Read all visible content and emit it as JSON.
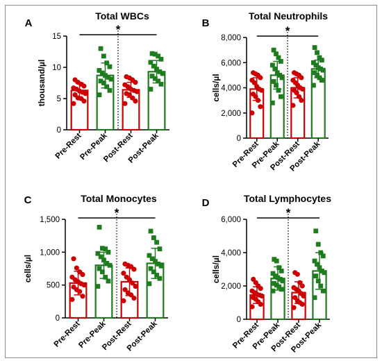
{
  "colors": {
    "rest": "#cc0000",
    "peak": "#1e7b1e",
    "axis": "#000000"
  },
  "chart_data": [
    {
      "type": "bar",
      "panel_label": "A",
      "title": "Total WBCs",
      "ylabel": "thousand/µl",
      "ylim": [
        0,
        15
      ],
      "yticks": [
        0,
        5,
        10,
        15
      ],
      "ytick_labels": [
        "0",
        "5",
        "10",
        "15"
      ],
      "categories": [
        "Pre-Rest",
        "Pre-Peak",
        "Post-Rest",
        "Post-Peak"
      ],
      "values": [
        6.3,
        8.7,
        6.4,
        9.3
      ],
      "error_sd": [
        1.2,
        2.0,
        1.2,
        1.8
      ],
      "points": [
        [
          4.2,
          4.6,
          5.0,
          5.1,
          5.6,
          5.8,
          6.0,
          6.2,
          6.5,
          6.7,
          7.0,
          7.3,
          7.6,
          8.0
        ],
        [
          5.6,
          6.3,
          6.9,
          7.5,
          7.8,
          8.1,
          8.4,
          8.7,
          9.1,
          9.5,
          10.1,
          10.7,
          11.8,
          13.0
        ],
        [
          4.2,
          4.6,
          5.1,
          5.6,
          5.8,
          6.1,
          6.3,
          6.5,
          6.9,
          7.2,
          7.6,
          8.0,
          8.3,
          8.5
        ],
        [
          6.5,
          7.3,
          7.8,
          8.2,
          8.6,
          9.0,
          9.3,
          9.7,
          10.2,
          10.8,
          11.3,
          11.8,
          12.1,
          12.2
        ]
      ],
      "significance": "*"
    },
    {
      "type": "bar",
      "panel_label": "B",
      "title": "Total Neutrophils",
      "ylabel": "cells/µl",
      "ylim": [
        0,
        8000
      ],
      "yticks": [
        0,
        2000,
        4000,
        6000,
        8000
      ],
      "ytick_labels": [
        "0",
        "2,000",
        "4,000",
        "6,000",
        "8,000"
      ],
      "categories": [
        "Pre-Rest",
        "Pre-Peak",
        "Post-Rest",
        "Post-Peak"
      ],
      "values": [
        3900,
        5000,
        4000,
        5500
      ],
      "error_sd": [
        900,
        1100,
        800,
        700
      ],
      "points": [
        [
          2000,
          2500,
          3000,
          3300,
          3500,
          3800,
          3900,
          4100,
          4400,
          4600,
          4800,
          5000,
          5100,
          5200
        ],
        [
          2800,
          3300,
          3800,
          4200,
          4500,
          4800,
          5000,
          5200,
          5500,
          5800,
          6100,
          6400,
          6700,
          7000
        ],
        [
          2600,
          3000,
          3300,
          3600,
          3800,
          3900,
          4000,
          4200,
          4400,
          4600,
          4800,
          5000,
          5100,
          5200
        ],
        [
          4200,
          4600,
          4800,
          5000,
          5200,
          5400,
          5500,
          5600,
          5800,
          6000,
          6200,
          6400,
          6800,
          7200
        ]
      ],
      "significance": "*"
    },
    {
      "type": "bar",
      "panel_label": "C",
      "title": "Total Monocytes",
      "ylabel": "cells/µl",
      "ylim": [
        0,
        1500
      ],
      "yticks": [
        0,
        500,
        1000,
        1500
      ],
      "ytick_labels": [
        "0",
        "500",
        "1,000",
        "1,500"
      ],
      "categories": [
        "Pre-Rest",
        "Pre-Peak",
        "Post-Rest",
        "Post-Peak"
      ],
      "values": [
        530,
        800,
        550,
        830
      ],
      "error_sd": [
        180,
        200,
        210,
        230
      ],
      "points": [
        [
          280,
          330,
          400,
          430,
          470,
          500,
          520,
          550,
          580,
          620,
          660,
          700,
          760,
          900
        ],
        [
          480,
          560,
          620,
          700,
          750,
          800,
          830,
          880,
          930,
          980,
          1000,
          1050,
          1060,
          1380
        ],
        [
          260,
          300,
          350,
          380,
          430,
          480,
          530,
          580,
          620,
          680,
          740,
          780,
          800,
          820
        ],
        [
          520,
          600,
          650,
          700,
          750,
          790,
          820,
          860,
          900,
          950,
          1050,
          1150,
          1220,
          1320
        ]
      ],
      "significance": "*"
    },
    {
      "type": "bar",
      "panel_label": "D",
      "title": "Total Lymphocytes",
      "ylabel": "cells/µl",
      "ylim": [
        0,
        6000
      ],
      "yticks": [
        0,
        2000,
        4000,
        6000
      ],
      "ytick_labels": [
        "0",
        "2,000",
        "4,000",
        "6,000"
      ],
      "categories": [
        "Pre-Rest",
        "Pre-Peak",
        "Post-Rest",
        "Post-Peak"
      ],
      "values": [
        1450,
        2450,
        1600,
        2900
      ],
      "error_sd": [
        500,
        700,
        650,
        1100
      ],
      "points": [
        [
          750,
          900,
          1050,
          1200,
          1300,
          1400,
          1450,
          1500,
          1600,
          1700,
          1850,
          2000,
          2200,
          2400
        ],
        [
          1700,
          1800,
          1950,
          2050,
          2150,
          2300,
          2400,
          2500,
          2600,
          2750,
          2900,
          3100,
          3500,
          3600
        ],
        [
          700,
          900,
          1000,
          1100,
          1300,
          1400,
          1550,
          1700,
          1800,
          1900,
          2000,
          2200,
          2700,
          2800
        ],
        [
          1300,
          1700,
          2000,
          2300,
          2600,
          2800,
          2900,
          3100,
          3300,
          3500,
          3800,
          4000,
          4500,
          5300
        ]
      ],
      "significance": "*"
    }
  ]
}
